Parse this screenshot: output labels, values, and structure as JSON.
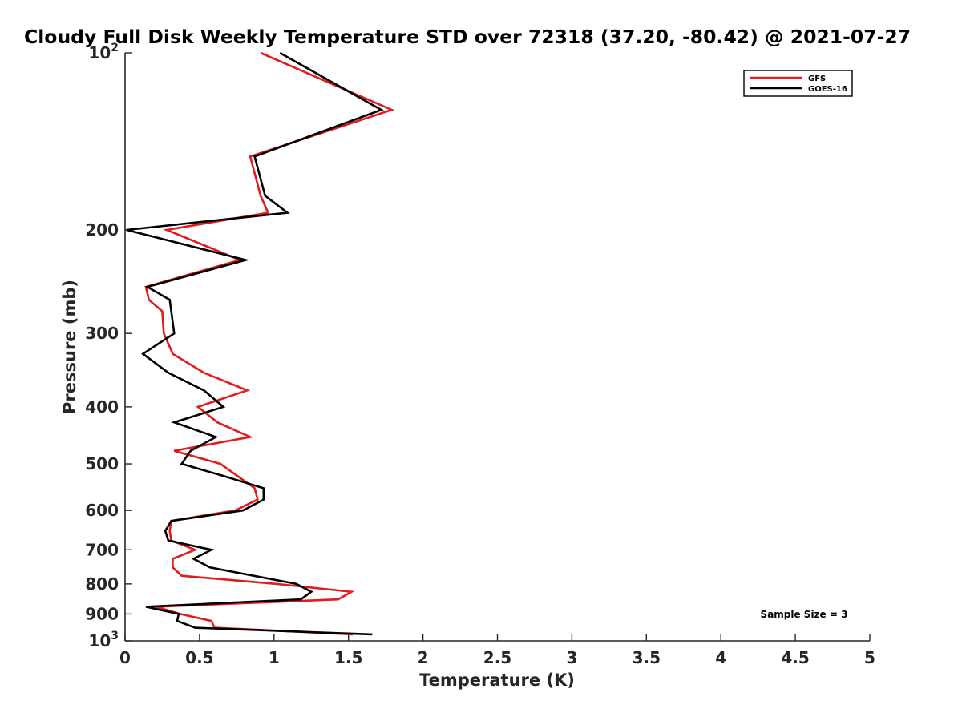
{
  "chart_data": {
    "type": "line",
    "title": "Cloudy Full Disk Weekly Temperature STD over 72318 (37.20, -80.42) @ 2021-07-27",
    "xlabel": "Temperature (K)",
    "ylabel": "Pressure (mb)",
    "xlim": [
      0,
      5
    ],
    "ylim": [
      1000,
      100
    ],
    "y_scale": "log",
    "y_reversed": true,
    "grid": false,
    "legend_position": "top-right",
    "x_ticks": [
      "0",
      "0.5",
      "1",
      "1.5",
      "2",
      "2.5",
      "3",
      "3.5",
      "4",
      "4.5",
      "5"
    ],
    "y_tick_labels": [
      {
        "value": 100,
        "base": "10",
        "exp": "2"
      },
      {
        "value": 200,
        "base": "200"
      },
      {
        "value": 300,
        "base": "300"
      },
      {
        "value": 400,
        "base": "400"
      },
      {
        "value": 500,
        "base": "500"
      },
      {
        "value": 600,
        "base": "600"
      },
      {
        "value": 700,
        "base": "700"
      },
      {
        "value": 800,
        "base": "800"
      },
      {
        "value": 900,
        "base": "900"
      },
      {
        "value": 1000,
        "base": "10",
        "exp": "3"
      }
    ],
    "annotation": "Sample Size = 3",
    "series": [
      {
        "name": "GFS",
        "color": "#e41a1c",
        "points": [
          {
            "t": 0.91,
            "p": 100
          },
          {
            "t": 1.79,
            "p": 125
          },
          {
            "t": 0.84,
            "p": 150
          },
          {
            "t": 0.91,
            "p": 175
          },
          {
            "t": 0.96,
            "p": 187
          },
          {
            "t": 0.28,
            "p": 200
          },
          {
            "t": 0.77,
            "p": 225
          },
          {
            "t": 0.14,
            "p": 250
          },
          {
            "t": 0.16,
            "p": 263
          },
          {
            "t": 0.25,
            "p": 275
          },
          {
            "t": 0.26,
            "p": 300
          },
          {
            "t": 0.32,
            "p": 325
          },
          {
            "t": 0.53,
            "p": 350
          },
          {
            "t": 0.82,
            "p": 375
          },
          {
            "t": 0.49,
            "p": 400
          },
          {
            "t": 0.62,
            "p": 425
          },
          {
            "t": 0.84,
            "p": 450
          },
          {
            "t": 0.33,
            "p": 475
          },
          {
            "t": 0.64,
            "p": 500
          },
          {
            "t": 0.87,
            "p": 550
          },
          {
            "t": 0.89,
            "p": 575
          },
          {
            "t": 0.74,
            "p": 600
          },
          {
            "t": 0.31,
            "p": 625
          },
          {
            "t": 0.3,
            "p": 650
          },
          {
            "t": 0.31,
            "p": 675
          },
          {
            "t": 0.47,
            "p": 700
          },
          {
            "t": 0.32,
            "p": 725
          },
          {
            "t": 0.32,
            "p": 750
          },
          {
            "t": 0.38,
            "p": 775
          },
          {
            "t": 1.02,
            "p": 800
          },
          {
            "t": 1.52,
            "p": 825
          },
          {
            "t": 1.43,
            "p": 850
          },
          {
            "t": 0.21,
            "p": 875
          },
          {
            "t": 0.37,
            "p": 900
          },
          {
            "t": 0.58,
            "p": 925
          },
          {
            "t": 0.6,
            "p": 950
          },
          {
            "t": 1.53,
            "p": 975
          }
        ]
      },
      {
        "name": "GOES-16",
        "color": "#000000",
        "points": [
          {
            "t": 1.04,
            "p": 100
          },
          {
            "t": 1.72,
            "p": 125
          },
          {
            "t": 0.87,
            "p": 150
          },
          {
            "t": 0.94,
            "p": 175
          },
          {
            "t": 1.09,
            "p": 187
          },
          {
            "t": 0.01,
            "p": 200
          },
          {
            "t": 0.81,
            "p": 225
          },
          {
            "t": 0.15,
            "p": 250
          },
          {
            "t": 0.3,
            "p": 263
          },
          {
            "t": 0.33,
            "p": 300
          },
          {
            "t": 0.12,
            "p": 325
          },
          {
            "t": 0.29,
            "p": 350
          },
          {
            "t": 0.53,
            "p": 375
          },
          {
            "t": 0.66,
            "p": 400
          },
          {
            "t": 0.33,
            "p": 425
          },
          {
            "t": 0.61,
            "p": 450
          },
          {
            "t": 0.44,
            "p": 475
          },
          {
            "t": 0.38,
            "p": 500
          },
          {
            "t": 0.67,
            "p": 525
          },
          {
            "t": 0.93,
            "p": 550
          },
          {
            "t": 0.93,
            "p": 575
          },
          {
            "t": 0.79,
            "p": 600
          },
          {
            "t": 0.31,
            "p": 625
          },
          {
            "t": 0.27,
            "p": 650
          },
          {
            "t": 0.29,
            "p": 675
          },
          {
            "t": 0.58,
            "p": 700
          },
          {
            "t": 0.46,
            "p": 725
          },
          {
            "t": 0.57,
            "p": 750
          },
          {
            "t": 1.15,
            "p": 800
          },
          {
            "t": 1.25,
            "p": 825
          },
          {
            "t": 1.18,
            "p": 850
          },
          {
            "t": 0.14,
            "p": 875
          },
          {
            "t": 0.36,
            "p": 900
          },
          {
            "t": 0.35,
            "p": 925
          },
          {
            "t": 0.47,
            "p": 950
          },
          {
            "t": 1.66,
            "p": 975
          }
        ]
      }
    ]
  }
}
